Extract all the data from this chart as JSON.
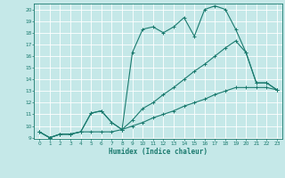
{
  "xlabel": "Humidex (Indice chaleur)",
  "xlim": [
    -0.5,
    23.5
  ],
  "ylim": [
    8.9,
    20.5
  ],
  "xtick_vals": [
    0,
    1,
    2,
    3,
    4,
    5,
    6,
    7,
    8,
    9,
    10,
    11,
    12,
    13,
    14,
    15,
    16,
    17,
    18,
    19,
    20,
    21,
    22,
    23
  ],
  "ytick_vals": [
    9,
    10,
    11,
    12,
    13,
    14,
    15,
    16,
    17,
    18,
    19,
    20
  ],
  "bg_color": "#c5e8e8",
  "grid_color": "#ffffff",
  "line_color": "#1a7a6e",
  "line1_x": [
    0,
    1,
    2,
    3,
    4,
    5,
    6,
    7,
    8,
    9,
    10,
    11,
    12,
    13,
    14,
    15,
    16,
    17,
    18,
    19,
    20,
    21,
    22,
    23
  ],
  "line1_y": [
    9.5,
    9.0,
    9.3,
    9.3,
    9.5,
    11.1,
    11.3,
    10.3,
    9.7,
    16.3,
    18.3,
    18.5,
    18.0,
    18.5,
    19.3,
    17.7,
    20.0,
    20.3,
    20.0,
    18.3,
    16.3,
    13.7,
    13.7,
    13.1
  ],
  "line2_x": [
    0,
    1,
    2,
    3,
    4,
    5,
    6,
    7,
    8,
    9,
    10,
    11,
    12,
    13,
    14,
    15,
    16,
    17,
    18,
    19,
    20,
    21,
    22,
    23
  ],
  "line2_y": [
    9.5,
    9.0,
    9.3,
    9.3,
    9.5,
    11.1,
    11.3,
    10.3,
    9.7,
    10.5,
    11.5,
    12.0,
    12.7,
    13.3,
    14.0,
    14.7,
    15.3,
    16.0,
    16.7,
    17.3,
    16.3,
    13.7,
    13.7,
    13.1
  ],
  "line3_x": [
    0,
    1,
    2,
    3,
    4,
    5,
    6,
    7,
    8,
    9,
    10,
    11,
    12,
    13,
    14,
    15,
    16,
    17,
    18,
    19,
    20,
    21,
    22,
    23
  ],
  "line3_y": [
    9.5,
    9.0,
    9.3,
    9.3,
    9.5,
    9.5,
    9.5,
    9.5,
    9.7,
    10.0,
    10.3,
    10.7,
    11.0,
    11.3,
    11.7,
    12.0,
    12.3,
    12.7,
    13.0,
    13.3,
    13.3,
    13.3,
    13.3,
    13.1
  ]
}
